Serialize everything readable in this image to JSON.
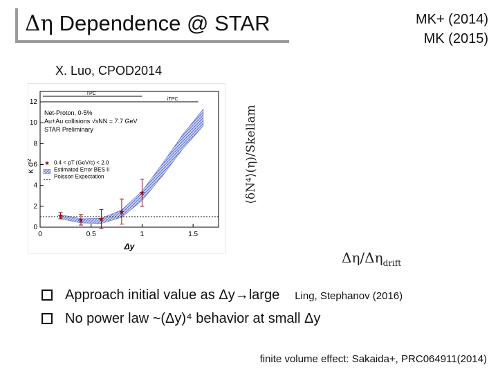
{
  "header": {
    "title_symbol": "Δη",
    "title_text": " Dependence @ STAR",
    "refs": [
      "MK+ (2014)",
      "MK (2015)"
    ]
  },
  "plot_caption": "X. Luo, CPOD2014",
  "side_axis_label": "⟨δN⁴⟩(η)/Skellam",
  "bottom_axis_label": {
    "main": "Δη/Δη",
    "sub": "drift"
  },
  "chart_data": {
    "type": "scatter",
    "xlabel": "Δy",
    "ylabel": "κ σ²",
    "xlim": [
      0,
      1.75
    ],
    "ylim": [
      0,
      13
    ],
    "x_ticks": [
      "0",
      "0.5",
      "1",
      "1.5"
    ],
    "y_ticks": [
      "0",
      "2",
      "4",
      "6",
      "8",
      "10",
      "12"
    ],
    "legend_top": [
      "Net-Proton, 0-5%",
      "Au+Au collisions √sNN = 7.7 GeV",
      "STAR Preliminary"
    ],
    "legend_bottom": [
      "0.4 < pT (GeV/c) < 2.0",
      "Estimated Error BES II",
      "Poisson Expectation"
    ],
    "tpc_labels": [
      "TPC",
      "iTPC"
    ],
    "series": [
      {
        "name": "0.4 < pT (GeV/c) < 2.0",
        "x": [
          0.2,
          0.4,
          0.6,
          0.8,
          1.0
        ],
        "y": [
          1.1,
          0.7,
          0.8,
          1.5,
          3.3
        ],
        "err": [
          0.3,
          0.5,
          0.9,
          1.2,
          1.3
        ],
        "color": "#8b1020"
      }
    ],
    "band": {
      "name": "Estimated Error BES II",
      "x": [
        0.2,
        0.4,
        0.6,
        0.8,
        1.0,
        1.2,
        1.4,
        1.6
      ],
      "y": [
        1.0,
        0.6,
        0.6,
        1.3,
        3.0,
        5.5,
        8.2,
        10.5
      ],
      "half_width": [
        0.2,
        0.2,
        0.25,
        0.35,
        0.45,
        0.6,
        0.7,
        0.8
      ],
      "color": "#5a6fd0"
    },
    "poisson": 1.0
  },
  "bullets": [
    {
      "text": "Approach initial value as Δy→large",
      "ref": "Ling, Stephanov (2016)"
    },
    {
      "text": "No power law ~(Δy)⁴ behavior at small Δy",
      "ref": ""
    }
  ],
  "footer": "finite volume effect: Sakaida+, PRC064911(2014)"
}
